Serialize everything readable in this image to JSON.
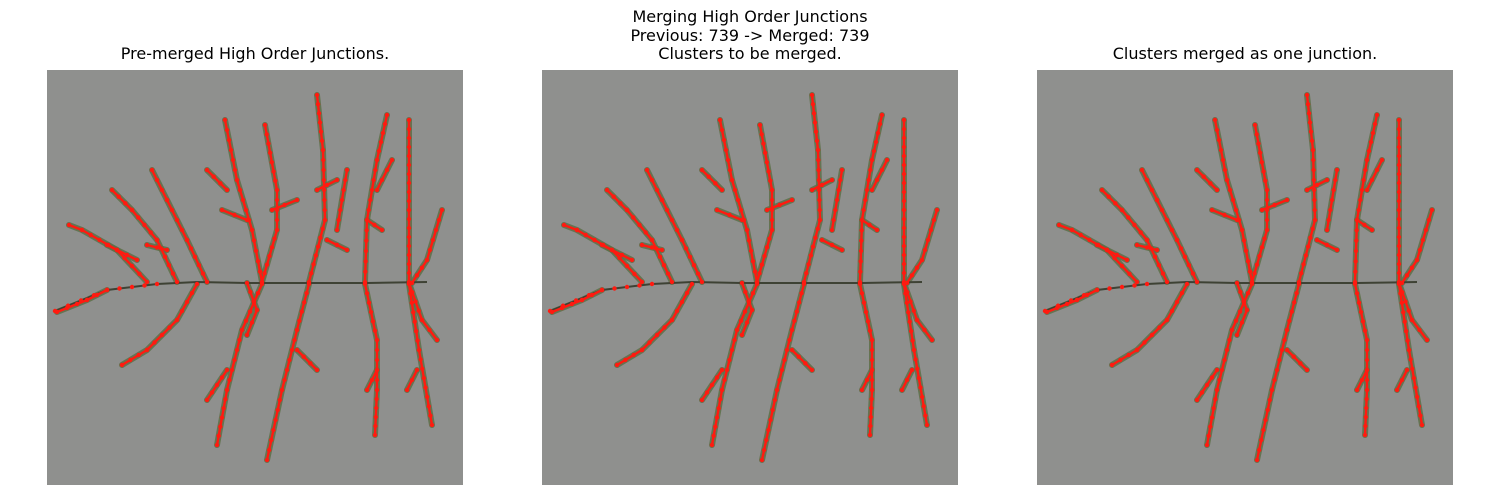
{
  "figure": {
    "title_line1": "Merging High Order Junctions",
    "title_line2": "Previous: 739 -> Merged: 739"
  },
  "panels": [
    {
      "title": "Pre-merged High Order Junctions."
    },
    {
      "title": "Clusters to be merged."
    },
    {
      "title": "Clusters merged as one junction."
    }
  ],
  "colors": {
    "background": "#8f908e",
    "stem": "#3e4234",
    "leaf": "#5d7048",
    "junction_marker": "#ff1a10"
  }
}
